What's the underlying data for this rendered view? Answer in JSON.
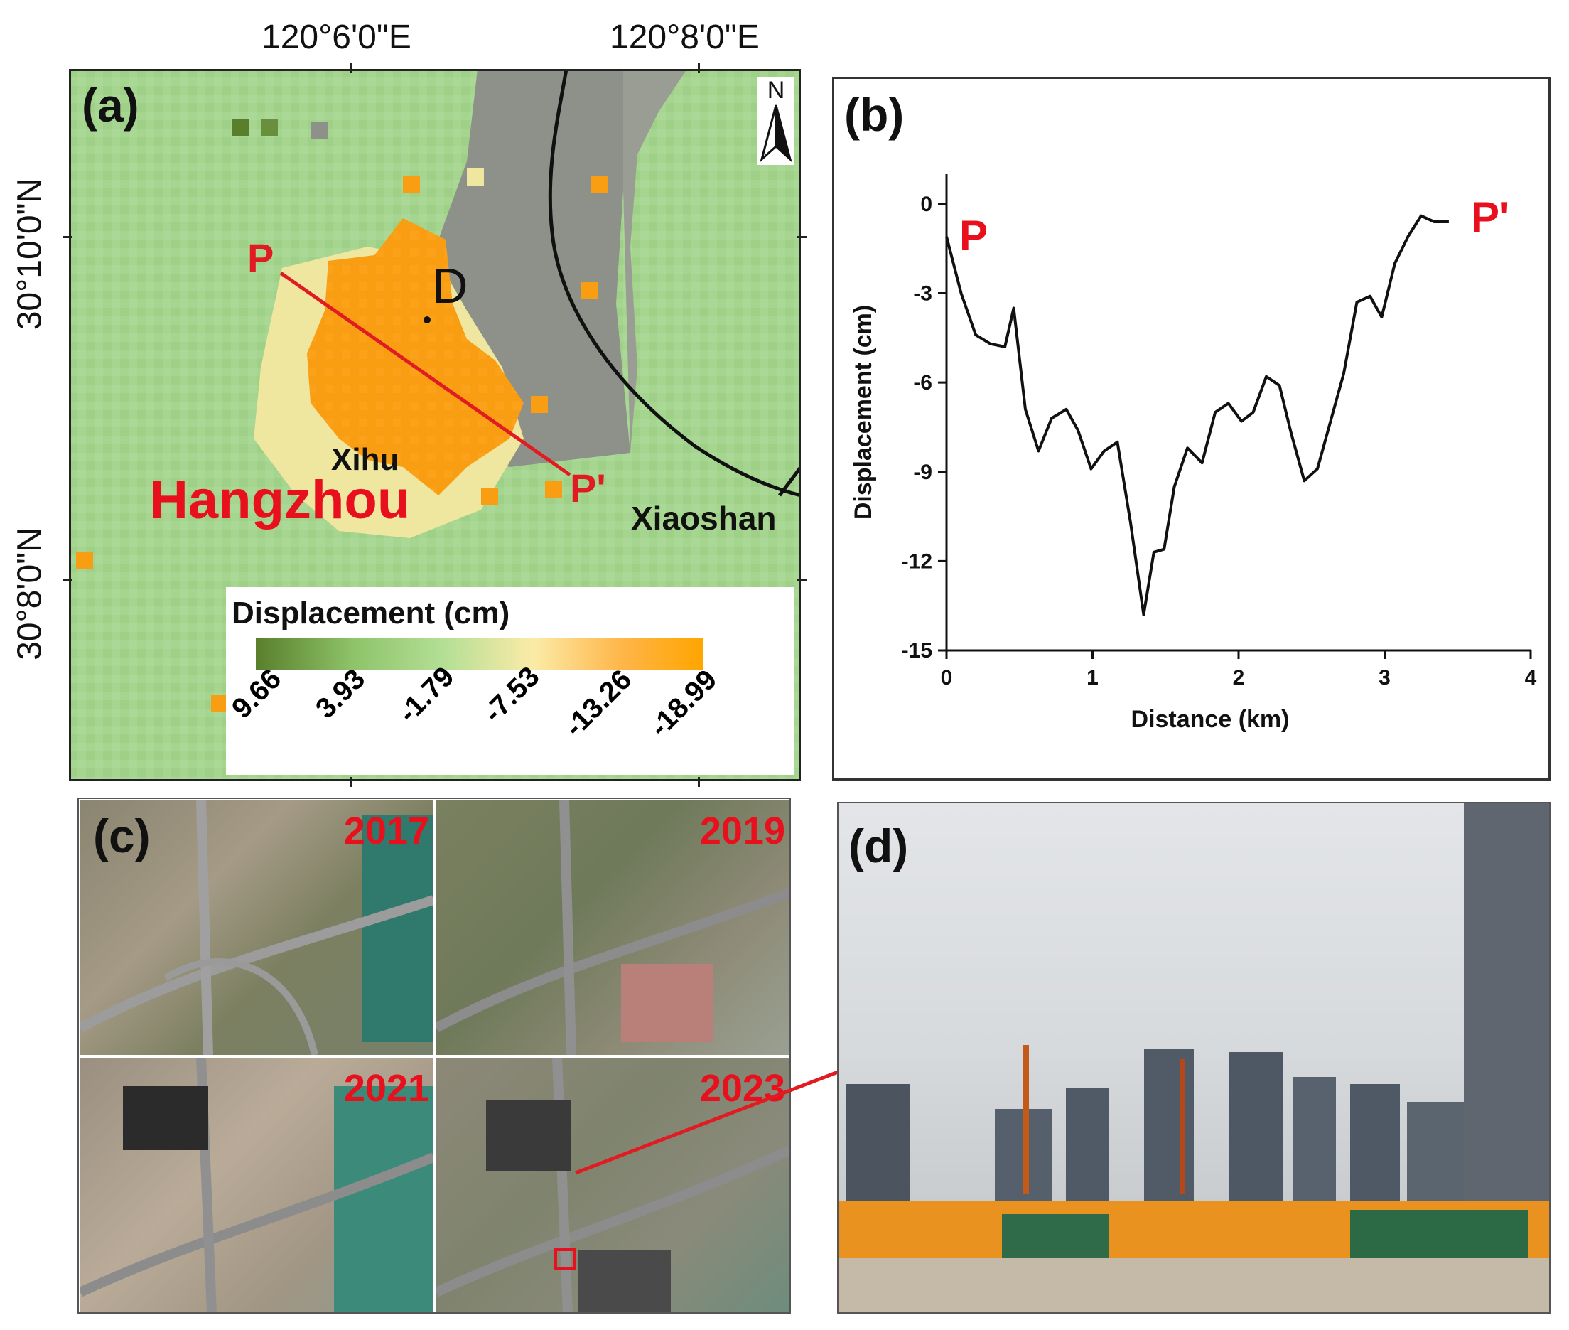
{
  "panel_a": {
    "label": "(a)",
    "lon_ticks": [
      "120°6'0\"E",
      "120°8'0\"E"
    ],
    "lat_ticks": [
      "30°10'0\"N",
      "30°8'0\"N"
    ],
    "north_label": "N",
    "point_label": "D",
    "profile_start": "P",
    "profile_end": "P'",
    "place_city": "Hangzhou",
    "place_district_1": "Xihu",
    "place_district_2": "Xiaoshan",
    "legend": {
      "title": "Displacement (cm)",
      "ticks": [
        "9.66",
        "3.93",
        "-1.79",
        "-7.53",
        "-13.26",
        "-18.99"
      ],
      "colors": [
        "#5a7f2c",
        "#8ec46a",
        "#b4df95",
        "#fbeba7",
        "#ffb548",
        "#ffa500"
      ]
    },
    "colors": {
      "stable": "#a3d38c",
      "subsidence": "#f99e13",
      "river": "#8c8f87",
      "profile_line": "#e11b22"
    }
  },
  "panel_b": {
    "label": "(b)",
    "profile_start": "P",
    "profile_end": "P'"
  },
  "chart_data": {
    "type": "line",
    "xlabel": "Distance (km)",
    "ylabel": "Displacement (cm)",
    "xlim": [
      0,
      4
    ],
    "ylim": [
      -15,
      1
    ],
    "xticks": [
      0,
      1,
      2,
      3,
      4
    ],
    "yticks": [
      0,
      -3,
      -6,
      -9,
      -12,
      -15
    ],
    "grid": false,
    "series": [
      {
        "x": [
          0,
          0.1,
          0.2,
          0.3,
          0.4,
          0.46,
          0.54,
          0.63,
          0.72,
          0.82,
          0.9,
          0.99,
          1.08,
          1.17,
          1.26,
          1.35,
          1.42,
          1.49,
          1.56,
          1.65,
          1.75,
          1.84,
          1.93,
          2.02,
          2.1,
          2.19,
          2.28,
          2.36,
          2.45,
          2.54,
          2.63,
          2.72,
          2.81,
          2.9,
          2.98,
          3.07,
          3.16,
          3.25,
          3.34,
          3.44
        ],
        "y": [
          -1.1,
          -3.0,
          -4.4,
          -4.7,
          -4.8,
          -3.5,
          -6.9,
          -8.3,
          -7.2,
          -6.9,
          -7.6,
          -8.9,
          -8.3,
          -8.0,
          -10.7,
          -13.8,
          -11.7,
          -11.6,
          -9.5,
          -8.2,
          -8.7,
          -7.0,
          -6.7,
          -7.3,
          -7.0,
          -5.8,
          -6.1,
          -7.7,
          -9.3,
          -8.9,
          -7.3,
          -5.7,
          -3.3,
          -3.1,
          -3.8,
          -2.0,
          -1.1,
          -0.4,
          -0.6,
          -0.6
        ]
      }
    ]
  },
  "panel_c": {
    "label": "(c)",
    "years": [
      "2017",
      "2019",
      "2021",
      "2023"
    ]
  },
  "panel_d": {
    "label": "(d)"
  }
}
